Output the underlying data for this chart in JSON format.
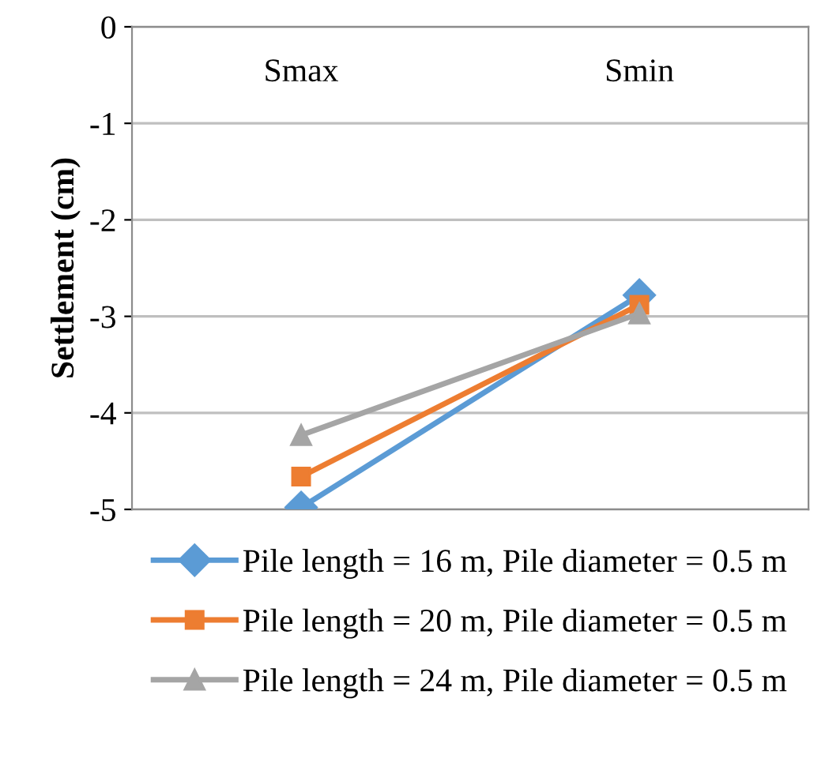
{
  "chart_data": {
    "type": "line",
    "ylabel": "Settlement (cm)",
    "categories": [
      "Smax",
      "Smin"
    ],
    "series": [
      {
        "name": "Pile length = 16 m, Pile diameter = 0.5 m",
        "color": "#5b9bd5",
        "marker": "diamond",
        "values": [
          -4.98,
          -2.78
        ]
      },
      {
        "name": "Pile length = 20 m, Pile diameter = 0.5 m",
        "color": "#ed7d31",
        "marker": "square",
        "values": [
          -4.66,
          -2.88
        ]
      },
      {
        "name": "Pile length = 24 m, Pile diameter = 0.5 m",
        "color": "#a5a5a5",
        "marker": "triangle",
        "values": [
          -4.23,
          -2.97
        ]
      }
    ],
    "ylim": [
      -5,
      0
    ],
    "yticks": [
      -5,
      -4,
      -3,
      -2,
      -1,
      0
    ],
    "grid": "y",
    "legend": "bottom"
  }
}
